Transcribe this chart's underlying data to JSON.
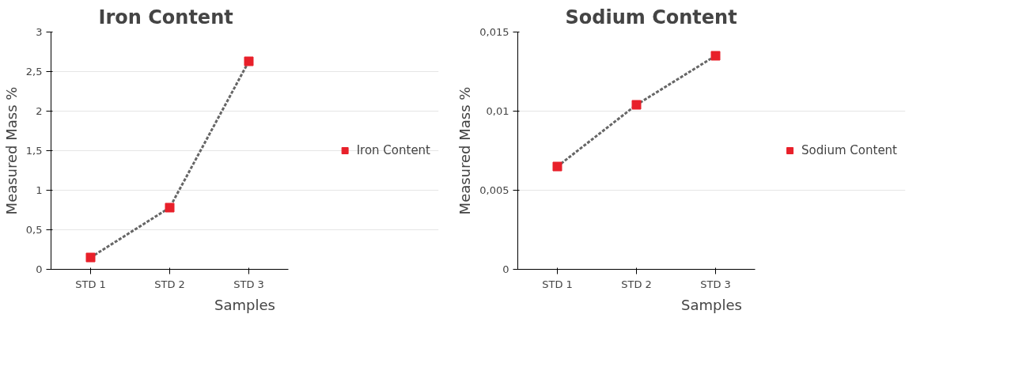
{
  "chart_data": [
    {
      "type": "line",
      "title": "Iron Content",
      "xlabel": "Samples",
      "ylabel": "Measured Mass %",
      "categories": [
        "STD 1",
        "STD 2",
        "STD 3"
      ],
      "series": [
        {
          "name": "Iron Content",
          "color": "#e8202a",
          "values": [
            0.15,
            0.78,
            2.63
          ]
        }
      ],
      "ylim": [
        0,
        3
      ],
      "yticks": [
        0,
        {
          "value": 0.5,
          "label": "0,5"
        },
        1,
        {
          "value": 1.5,
          "label": "1,5"
        },
        2,
        {
          "value": 2.5,
          "label": "2,5"
        },
        3
      ],
      "grid": "y",
      "legend": "right",
      "marker": "square",
      "line_style": "dashed"
    },
    {
      "type": "line",
      "title": "Sodium Content",
      "xlabel": "Samples",
      "ylabel": "Measured Mass %",
      "categories": [
        "STD 1",
        "STD 2",
        "STD 3"
      ],
      "series": [
        {
          "name": "Sodium Content",
          "color": "#e8202a",
          "values": [
            0.0065,
            0.0104,
            0.0135
          ]
        }
      ],
      "ylim": [
        0,
        0.015
      ],
      "yticks": [
        0,
        {
          "value": 0.005,
          "label": "0,005"
        },
        {
          "value": 0.01,
          "label": "0,01"
        },
        {
          "value": 0.015,
          "label": "0,015"
        }
      ],
      "grid": "y",
      "legend": "right",
      "marker": "square",
      "line_style": "dashed"
    }
  ]
}
